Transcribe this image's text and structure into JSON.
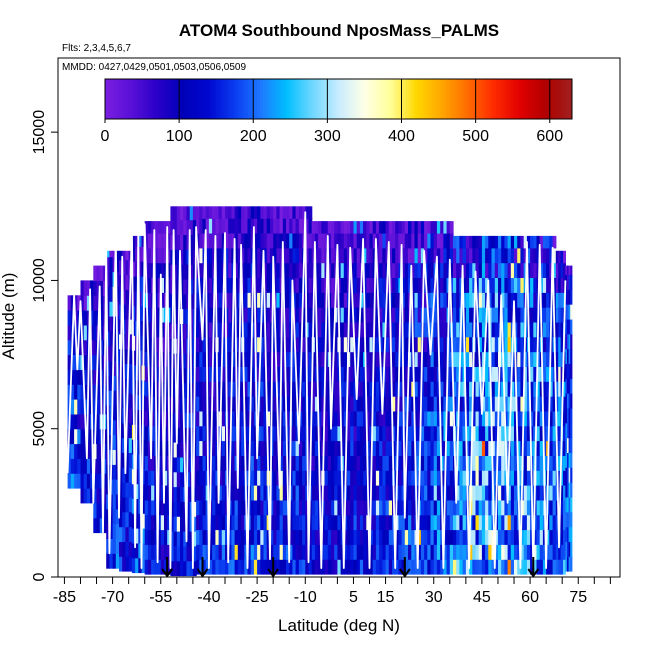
{
  "chart_data": {
    "type": "heatmap",
    "title": "ATOM4 Southbound NposMass_PALMS",
    "flights_label": "Flts: 2,3,4,5,6,7",
    "dates_label": "MMDD: 0427,0429,0501,0503,0506,0509",
    "xlabel": "Latitude (deg N)",
    "ylabel": "Altitude (m)",
    "xlim": [
      -87,
      88
    ],
    "ylim": [
      0,
      17500
    ],
    "x_ticks": [
      -85,
      -70,
      -55,
      -40,
      -25,
      -10,
      5,
      15,
      30,
      45,
      60,
      75
    ],
    "x_minor_ticks": [
      -80,
      -75,
      -65,
      -60,
      -50,
      -45,
      -35,
      -30,
      -20,
      -15,
      -5,
      0,
      10,
      20,
      25,
      35,
      40,
      50,
      55,
      65,
      70,
      80,
      85
    ],
    "y_ticks": [
      0,
      5000,
      10000,
      15000
    ],
    "colorbar": {
      "range": [
        0,
        630
      ],
      "ticks": [
        0,
        100,
        200,
        300,
        400,
        500,
        600
      ],
      "colors": [
        "#7a1fe0",
        "#5a10d8",
        "#2a00c8",
        "#0000b8",
        "#0008d0",
        "#0a3cf0",
        "#1e78ff",
        "#00bfff",
        "#70d8ff",
        "#c8ecff",
        "#ffffe6",
        "#ffff99",
        "#ffd700",
        "#ffa500",
        "#ff6a00",
        "#ff2a00",
        "#e00000",
        "#b00000",
        "#a02020"
      ]
    },
    "flight_track_color": "#ffffff",
    "curtain": {
      "lat_range": [
        -84,
        72
      ],
      "alt_bin_m": 500,
      "columns": [
        {
          "lat": -84,
          "top": 9500,
          "bottom": 3000,
          "median": 170
        },
        {
          "lat": -80,
          "top": 10000,
          "bottom": 2500,
          "median": 150
        },
        {
          "lat": -76,
          "top": 10500,
          "bottom": 1500,
          "median": 140
        },
        {
          "lat": -72,
          "top": 11000,
          "bottom": 300,
          "median": 160
        },
        {
          "lat": -68,
          "top": 11000,
          "bottom": 200,
          "median": 150
        },
        {
          "lat": -64,
          "top": 11500,
          "bottom": 150,
          "median": 170
        },
        {
          "lat": -60,
          "top": 12000,
          "bottom": 100,
          "median": 140
        },
        {
          "lat": -56,
          "top": 12000,
          "bottom": 100,
          "median": 120
        },
        {
          "lat": -52,
          "top": 12500,
          "bottom": 50,
          "median": 130
        },
        {
          "lat": -48,
          "top": 12500,
          "bottom": 50,
          "median": 150
        },
        {
          "lat": -44,
          "top": 12500,
          "bottom": 100,
          "median": 150
        },
        {
          "lat": -40,
          "top": 12500,
          "bottom": 100,
          "median": 140
        },
        {
          "lat": -36,
          "top": 12500,
          "bottom": 100,
          "median": 150
        },
        {
          "lat": -32,
          "top": 12500,
          "bottom": 100,
          "median": 150
        },
        {
          "lat": -28,
          "top": 12500,
          "bottom": 100,
          "median": 160
        },
        {
          "lat": -24,
          "top": 12500,
          "bottom": 100,
          "median": 150
        },
        {
          "lat": -20,
          "top": 12500,
          "bottom": 100,
          "median": 140
        },
        {
          "lat": -16,
          "top": 12500,
          "bottom": 100,
          "median": 150
        },
        {
          "lat": -12,
          "top": 12500,
          "bottom": 100,
          "median": 140
        },
        {
          "lat": -8,
          "top": 12000,
          "bottom": 100,
          "median": 130
        },
        {
          "lat": -4,
          "top": 12000,
          "bottom": 100,
          "median": 130
        },
        {
          "lat": 0,
          "top": 12000,
          "bottom": 100,
          "median": 140
        },
        {
          "lat": 4,
          "top": 12000,
          "bottom": 100,
          "median": 140
        },
        {
          "lat": 8,
          "top": 12000,
          "bottom": 100,
          "median": 140
        },
        {
          "lat": 12,
          "top": 12000,
          "bottom": 100,
          "median": 150
        },
        {
          "lat": 16,
          "top": 12000,
          "bottom": 100,
          "median": 150
        },
        {
          "lat": 20,
          "top": 12000,
          "bottom": 100,
          "median": 160
        },
        {
          "lat": 24,
          "top": 12000,
          "bottom": 100,
          "median": 170
        },
        {
          "lat": 28,
          "top": 12000,
          "bottom": 100,
          "median": 180
        },
        {
          "lat": 32,
          "top": 12000,
          "bottom": 100,
          "median": 190
        },
        {
          "lat": 36,
          "top": 11500,
          "bottom": 100,
          "median": 220
        },
        {
          "lat": 40,
          "top": 11500,
          "bottom": 100,
          "median": 230
        },
        {
          "lat": 44,
          "top": 11500,
          "bottom": 100,
          "median": 240
        },
        {
          "lat": 48,
          "top": 11500,
          "bottom": 100,
          "median": 250
        },
        {
          "lat": 52,
          "top": 11500,
          "bottom": 100,
          "median": 240
        },
        {
          "lat": 56,
          "top": 11500,
          "bottom": 100,
          "median": 230
        },
        {
          "lat": 60,
          "top": 11500,
          "bottom": 100,
          "median": 220
        },
        {
          "lat": 64,
          "top": 11500,
          "bottom": 100,
          "median": 210
        },
        {
          "lat": 68,
          "top": 11000,
          "bottom": 100,
          "median": 200
        },
        {
          "lat": 71,
          "top": 10500,
          "bottom": 200,
          "median": 190
        }
      ]
    },
    "profile_arrows_lat": [
      -53,
      -42,
      -20,
      21,
      61
    ],
    "flight_track_lat": [
      -84,
      -82,
      -81,
      -80,
      -78,
      -77,
      -76,
      -74,
      -73,
      -72,
      -71,
      -69,
      -68,
      -67,
      -66,
      -64,
      -63,
      -62,
      -61,
      -60,
      -58,
      -57,
      -56,
      -55,
      -54,
      -53,
      -52,
      -51,
      -50,
      -49,
      -47,
      -46,
      -45,
      -44,
      -42,
      -41,
      -40,
      -38,
      -37,
      -35,
      -34,
      -32,
      -31,
      -30,
      -28,
      -26,
      -25,
      -23,
      -21,
      -20,
      -18,
      -17,
      -15,
      -14,
      -12,
      -10,
      -9,
      -7,
      -5,
      -3,
      -2,
      0,
      2,
      4,
      6,
      8,
      10,
      12,
      14,
      16,
      18,
      20,
      21,
      23,
      25,
      27,
      29,
      31,
      33,
      35,
      37,
      39,
      41,
      43,
      45,
      47,
      49,
      51,
      53,
      55,
      57,
      59,
      61,
      63,
      65,
      67,
      69,
      71
    ],
    "flight_track_alt": [
      3500,
      9500,
      7000,
      9300,
      4000,
      9700,
      2500,
      9800,
      1500,
      11000,
      800,
      11500,
      2000,
      10800,
      3500,
      11800,
      1000,
      11600,
      300,
      11900,
      4000,
      11700,
      500,
      10200,
      2500,
      11800,
      300,
      11700,
      4500,
      11000,
      1200,
      11700,
      300,
      11800,
      8000,
      11700,
      300,
      11500,
      2500,
      11600,
      500,
      11400,
      3000,
      11200,
      300,
      11800,
      4000,
      11000,
      600,
      10800,
      3000,
      11300,
      500,
      10000,
      4500,
      12300,
      500,
      11300,
      300,
      11500,
      5000,
      11200,
      300,
      11100,
      6000,
      11400,
      300,
      11400,
      5500,
      11300,
      300,
      11200,
      2000,
      10500,
      300,
      11000,
      7500,
      10800,
      300,
      10700,
      2500,
      10500,
      300,
      10300,
      5500,
      10000,
      300,
      9500,
      2500,
      9300,
      300,
      11300,
      300,
      11200,
      300,
      11100,
      1000,
      10000
    ]
  }
}
